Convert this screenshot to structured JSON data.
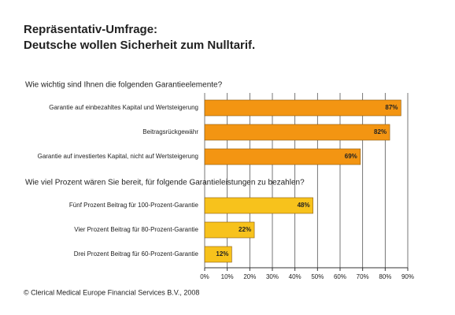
{
  "chart_data": {
    "type": "bar",
    "title_lines": [
      "Repräsentativ-Umfrage:",
      "Deutsche wollen Sicherheit zum Nulltarif."
    ],
    "groups": [
      {
        "heading": "Wie wichtig sind Ihnen die folgenden Garantieelemente?",
        "categories": [
          "Garantie auf einbezahltes Kapital und Wertsteigerung",
          "Beitragsrückgewähr",
          "Garantie auf investiertes Kapital, nicht auf Wertsteigerung"
        ],
        "values": [
          87,
          82,
          69
        ],
        "value_labels": [
          "87%",
          "82%",
          "69%"
        ],
        "color": "#f39512"
      },
      {
        "heading": "Wie viel Prozent wären Sie bereit, für folgende Garantieleistungen zu bezahlen?",
        "categories": [
          "Fünf Prozent Beitrag für 100-Prozent-Garantie",
          "Vier Prozent Beitrag für 80-Prozent-Garantie",
          "Drei Prozent Beitrag für 60-Prozent-Garantie"
        ],
        "values": [
          48,
          22,
          12
        ],
        "value_labels": [
          "48%",
          "22%",
          "12%"
        ],
        "color": "#f7c21c"
      }
    ],
    "xlim": [
      0,
      90
    ],
    "xticks": [
      {
        "value": 0,
        "label": "0%"
      },
      {
        "value": 10,
        "label": "10%"
      },
      {
        "value": 20,
        "label": "20%"
      },
      {
        "value": 30,
        "label": "30%"
      },
      {
        "value": 40,
        "label": "40%"
      },
      {
        "value": 50,
        "label": "50%"
      },
      {
        "value": 60,
        "label": "60%"
      },
      {
        "value": 70,
        "label": "70%"
      },
      {
        "value": 80,
        "label": "80%"
      },
      {
        "value": 90,
        "label": "90%"
      }
    ],
    "grid": true,
    "source": "© Clerical Medical Europe Financial Services B.V., 2008"
  }
}
